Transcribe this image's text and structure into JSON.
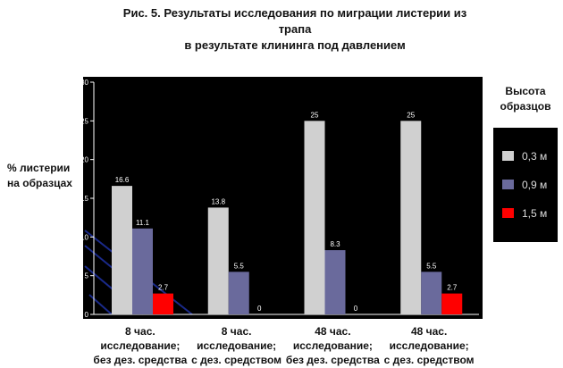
{
  "chart_data": {
    "type": "bar",
    "title_line1": "Рис. 5. Результаты исследования по миграции листерии из трапа",
    "title_line2": "в результате клининга под давлением",
    "ylabel_line1": "% листерии",
    "ylabel_line2": "на образцах",
    "ylim": [
      0,
      30
    ],
    "yticks": [
      "0",
      "5",
      "10",
      "15",
      "20",
      "25",
      "30"
    ],
    "categories": [
      [
        "8 час.",
        "исследование;",
        "без дез. средства"
      ],
      [
        "8 час.",
        "исследование;",
        "с дез. средством"
      ],
      [
        "48 час.",
        "исследование;",
        "без дез. средства"
      ],
      [
        "48 час.",
        "исследование;",
        "с дез. средством"
      ]
    ],
    "series": [
      {
        "name": "0,3 м",
        "color": "#d0d0d0",
        "values": [
          16.6,
          13.8,
          25,
          25
        ],
        "labels": [
          "16.6",
          "13.8",
          "25",
          "25"
        ]
      },
      {
        "name": "0,9 м",
        "color": "#6a6a9c",
        "values": [
          11.1,
          5.5,
          8.3,
          5.5
        ],
        "labels": [
          "11.1",
          "5.5",
          "8.3",
          "5.5"
        ]
      },
      {
        "name": "1,5 м",
        "color": "#ff0000",
        "values": [
          2.7,
          0,
          0,
          2.7
        ],
        "labels": [
          "2.7",
          "0",
          "0",
          "2.7"
        ]
      }
    ],
    "legend_title_line1": "Высота",
    "legend_title_line2": "образцов",
    "legend_placement": "right",
    "grid": false,
    "plot_background": "#000000",
    "text_color_in_plot": "#ffffff"
  }
}
